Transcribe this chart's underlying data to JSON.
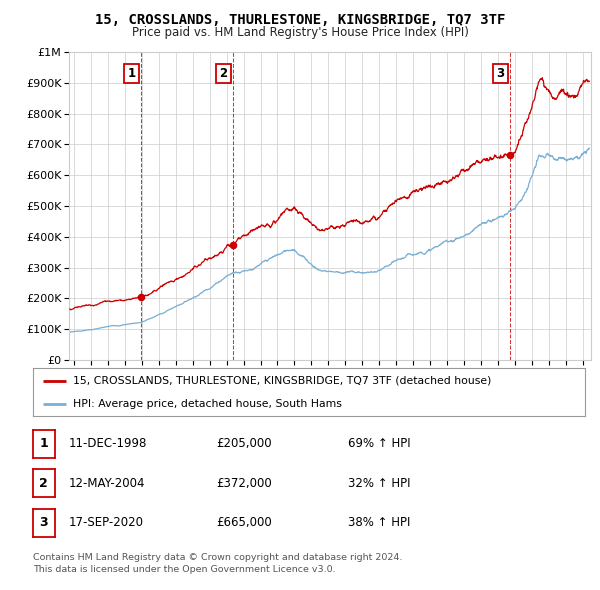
{
  "title": "15, CROSSLANDS, THURLESTONE, KINGSBRIDGE, TQ7 3TF",
  "subtitle": "Price paid vs. HM Land Registry's House Price Index (HPI)",
  "ylabel_values": [
    "£0",
    "£100K",
    "£200K",
    "£300K",
    "£400K",
    "£500K",
    "£600K",
    "£700K",
    "£800K",
    "£900K",
    "£1M"
  ],
  "ylim": [
    0,
    1000000
  ],
  "yticks": [
    0,
    100000,
    200000,
    300000,
    400000,
    500000,
    600000,
    700000,
    800000,
    900000,
    1000000
  ],
  "xlim_start": 1994.7,
  "xlim_end": 2025.5,
  "xticks": [
    1995,
    1996,
    1997,
    1998,
    1999,
    2000,
    2001,
    2002,
    2003,
    2004,
    2005,
    2006,
    2007,
    2008,
    2009,
    2010,
    2011,
    2012,
    2013,
    2014,
    2015,
    2016,
    2017,
    2018,
    2019,
    2020,
    2021,
    2022,
    2023,
    2024,
    2025
  ],
  "sale_color": "#cc0000",
  "hpi_color": "#7aafd4",
  "transactions": [
    {
      "label": "1",
      "date_num": 1998.95,
      "price": 205000,
      "pct": "69%",
      "date_str": "11-DEC-1998"
    },
    {
      "label": "2",
      "date_num": 2004.36,
      "price": 372000,
      "pct": "32%",
      "date_str": "12-MAY-2004"
    },
    {
      "label": "3",
      "date_num": 2020.71,
      "price": 665000,
      "pct": "38%",
      "date_str": "17-SEP-2020"
    }
  ],
  "legend_sale_label": "15, CROSSLANDS, THURLESTONE, KINGSBRIDGE, TQ7 3TF (detached house)",
  "legend_hpi_label": "HPI: Average price, detached house, South Hams",
  "footer": "Contains HM Land Registry data © Crown copyright and database right 2024.\nThis data is licensed under the Open Government Licence v3.0.",
  "background_color": "#ffffff",
  "grid_color": "#cccccc",
  "label_box_color": "#cc0000"
}
